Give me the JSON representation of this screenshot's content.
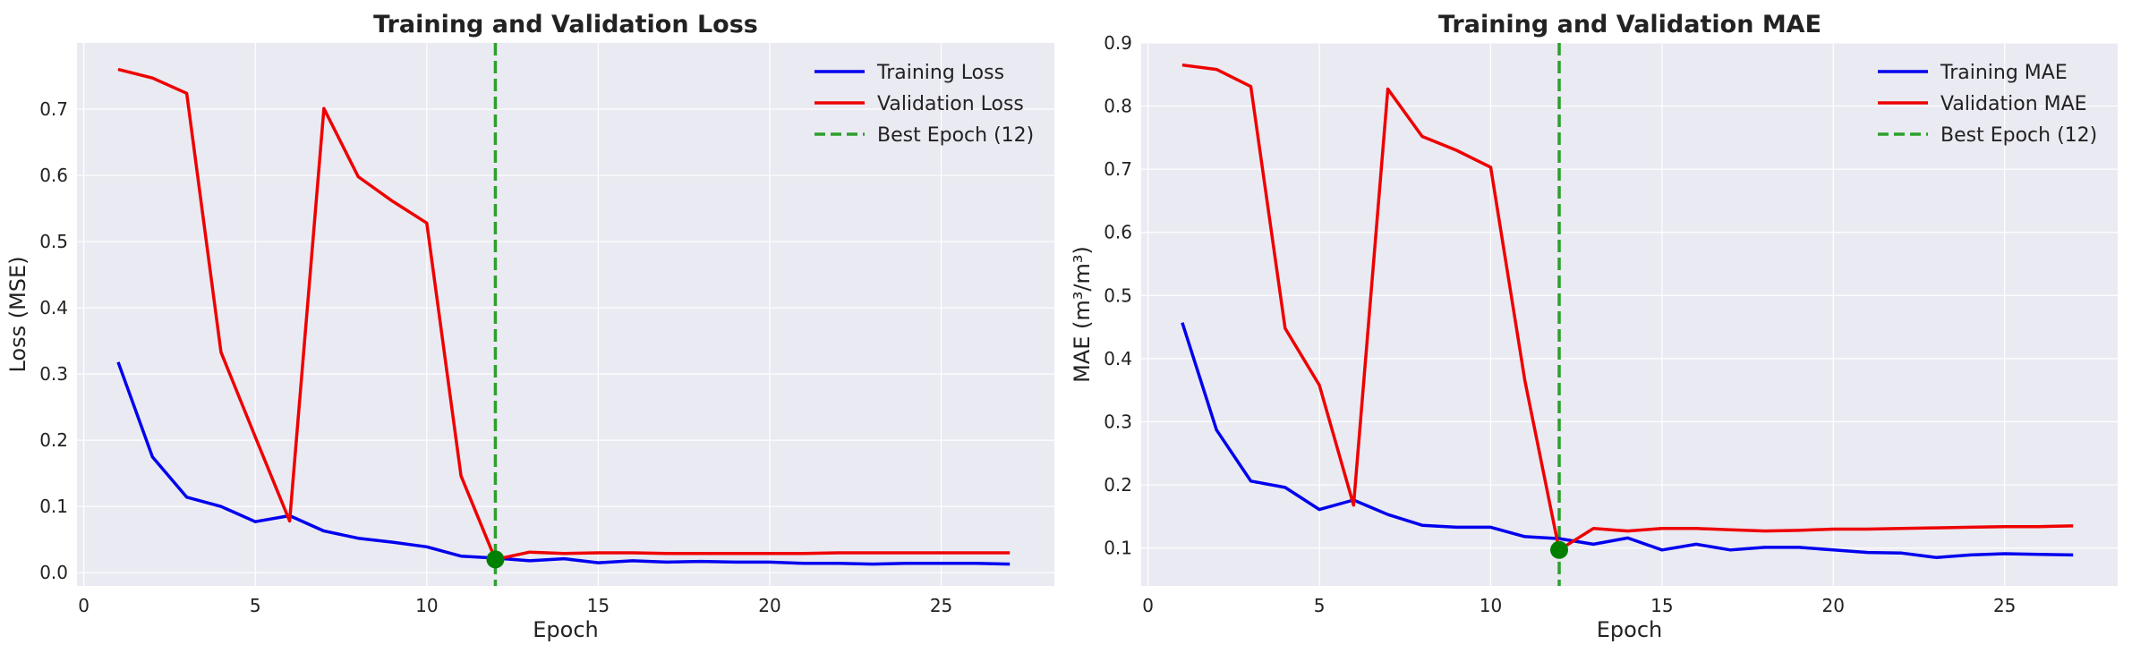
{
  "chart_data": [
    {
      "type": "line",
      "title": "Training and Validation Loss",
      "xlabel": "Epoch",
      "ylabel": "Loss (MSE)",
      "xlim": [
        -0.2,
        28.3
      ],
      "ylim": [
        -0.02,
        0.8
      ],
      "xticks": [
        0,
        5,
        10,
        15,
        20,
        25
      ],
      "yticks": [
        0.0,
        0.1,
        0.2,
        0.3,
        0.4,
        0.5,
        0.6,
        0.7
      ],
      "ytick_format": 1,
      "grid": true,
      "legend_position": "top-right",
      "x": [
        1,
        2,
        3,
        4,
        5,
        6,
        7,
        8,
        9,
        10,
        11,
        12,
        13,
        14,
        15,
        16,
        17,
        18,
        19,
        20,
        21,
        22,
        23,
        24,
        25,
        26,
        27
      ],
      "series": [
        {
          "name": "Training Loss",
          "color": "#0000ee",
          "values": [
            0.318,
            0.175,
            0.114,
            0.1,
            0.077,
            0.086,
            0.063,
            0.052,
            0.046,
            0.039,
            0.025,
            0.022,
            0.018,
            0.021,
            0.015,
            0.018,
            0.016,
            0.017,
            0.016,
            0.016,
            0.014,
            0.014,
            0.013,
            0.014,
            0.014,
            0.014,
            0.013
          ]
        },
        {
          "name": "Validation Loss",
          "color": "#ee0000",
          "values": [
            0.76,
            0.747,
            0.724,
            0.333,
            0.205,
            0.078,
            0.701,
            0.598,
            0.561,
            0.528,
            0.146,
            0.02,
            0.031,
            0.029,
            0.03,
            0.03,
            0.029,
            0.029,
            0.029,
            0.029,
            0.029,
            0.03,
            0.03,
            0.03,
            0.03,
            0.03,
            0.03
          ]
        }
      ],
      "best_epoch": {
        "label": "Best Epoch (12)",
        "x": 12,
        "y": 0.02,
        "color": "#2ca02c",
        "marker_color": "#008000"
      }
    },
    {
      "type": "line",
      "title": "Training and Validation MAE",
      "xlabel": "Epoch",
      "ylabel": "MAE (m³/m³)",
      "xlim": [
        -0.2,
        28.3
      ],
      "ylim": [
        0.04,
        0.9
      ],
      "xticks": [
        0,
        5,
        10,
        15,
        20,
        25
      ],
      "yticks": [
        0.1,
        0.2,
        0.3,
        0.4,
        0.5,
        0.6,
        0.7,
        0.8,
        0.9
      ],
      "ytick_format": 1,
      "grid": true,
      "legend_position": "top-right",
      "x": [
        1,
        2,
        3,
        4,
        5,
        6,
        7,
        8,
        9,
        10,
        11,
        12,
        13,
        14,
        15,
        16,
        17,
        18,
        19,
        20,
        21,
        22,
        23,
        24,
        25,
        26,
        27
      ],
      "series": [
        {
          "name": "Training MAE",
          "color": "#0000ee",
          "values": [
            0.457,
            0.287,
            0.206,
            0.196,
            0.161,
            0.176,
            0.153,
            0.136,
            0.133,
            0.133,
            0.118,
            0.115,
            0.106,
            0.116,
            0.097,
            0.106,
            0.097,
            0.101,
            0.101,
            0.097,
            0.093,
            0.092,
            0.085,
            0.089,
            0.091,
            0.09,
            0.089
          ]
        },
        {
          "name": "Validation MAE",
          "color": "#ee0000",
          "values": [
            0.865,
            0.858,
            0.831,
            0.448,
            0.358,
            0.168,
            0.827,
            0.752,
            0.73,
            0.703,
            0.365,
            0.097,
            0.131,
            0.127,
            0.131,
            0.131,
            0.129,
            0.127,
            0.128,
            0.13,
            0.13,
            0.131,
            0.132,
            0.133,
            0.134,
            0.134,
            0.135
          ]
        }
      ],
      "best_epoch": {
        "label": "Best Epoch (12)",
        "x": 12,
        "y": 0.097,
        "color": "#2ca02c",
        "marker_color": "#008000"
      }
    }
  ]
}
